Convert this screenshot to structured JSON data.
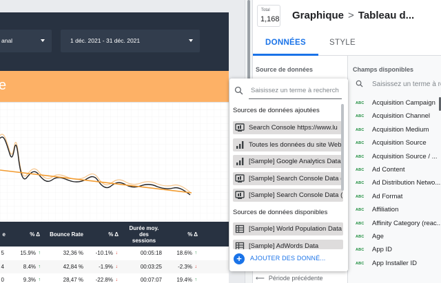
{
  "report": {
    "channel_control": "anal",
    "date_control": "1 déc. 2021 - 31 déc. 2021",
    "orange_band_text": "e",
    "table": {
      "headers": [
        "e",
        "% Δ",
        "Bounce Rate",
        "% Δ",
        "Durée moy. des sessions",
        "% Δ"
      ],
      "rows": [
        {
          "c0": "5",
          "d1": "15.9%",
          "d1_dir": "up",
          "br": "32,36 %",
          "d2": "-10.1%",
          "d2_dir": "down",
          "dur": "00:05:18",
          "d3": "18.6%",
          "d3_dir": "up"
        },
        {
          "c0": "4",
          "d1": "8.4%",
          "d1_dir": "up",
          "br": "42,84 %",
          "d2": "-1.9%",
          "d2_dir": "down",
          "dur": "00:03:25",
          "d3": "-2.3%",
          "d3_dir": "down"
        },
        {
          "c0": "0",
          "d1": "9.3%",
          "d1_dir": "up",
          "br": "28,47 %",
          "d2": "-22.8%",
          "d2_dir": "down",
          "dur": "00:07:07",
          "d3": "19.4%",
          "d3_dir": "up"
        }
      ]
    },
    "line_color": "#202124",
    "trend_color": "#f29b30",
    "header_color": "#283241",
    "band_color": "#fdb166"
  },
  "panel": {
    "total_label": "Total",
    "total_value": "1,168",
    "title_part1": "Graphique",
    "title_chevron": ">",
    "title_part2": "Tableau d...",
    "tabs": [
      "DONNÉES",
      "STYLE"
    ],
    "source_title": "Source de données",
    "previous_period": "Période précédente",
    "fields_title": "Champs disponibles",
    "fields_search_placeholder": "Saisissez un terme à rech",
    "field_type_badge": "ABC",
    "fields": [
      "Acquisition Campaign",
      "Acquisition Channel",
      "Acquisition Medium",
      "Acquisition Source",
      "Acquisition Source / ...",
      "Ad Content",
      "Ad Distribution Netwo...",
      "Ad Format",
      "Affiliation",
      "Affinity Category (reac...",
      "Age",
      "App ID",
      "App Installer ID"
    ],
    "accent_color": "#1a73e8"
  },
  "dropdown": {
    "search_placeholder": "Saisissez un terme à recherch",
    "added_section": "Sources de données ajoutées",
    "added_sources": [
      {
        "name": "Search Console https://www.lu",
        "icon": "search-console-icon"
      },
      {
        "name": "Toutes les données du site Web",
        "icon": "analytics-icon"
      },
      {
        "name": "[Sample] Google Analytics Data",
        "icon": "analytics-icon"
      },
      {
        "name": "[Sample] Search Console Data (",
        "icon": "search-console-icon"
      },
      {
        "name": "[Sample] Search Console Data (",
        "icon": "search-console-icon"
      }
    ],
    "available_section": "Sources de données disponibles",
    "available_sources": [
      {
        "name": "[Sample] World Population Data",
        "icon": "table-icon"
      },
      {
        "name": "[Sample] AdWords Data",
        "icon": "table-icon"
      }
    ],
    "add_label": "AJOUTER DES DONNÉ..."
  }
}
